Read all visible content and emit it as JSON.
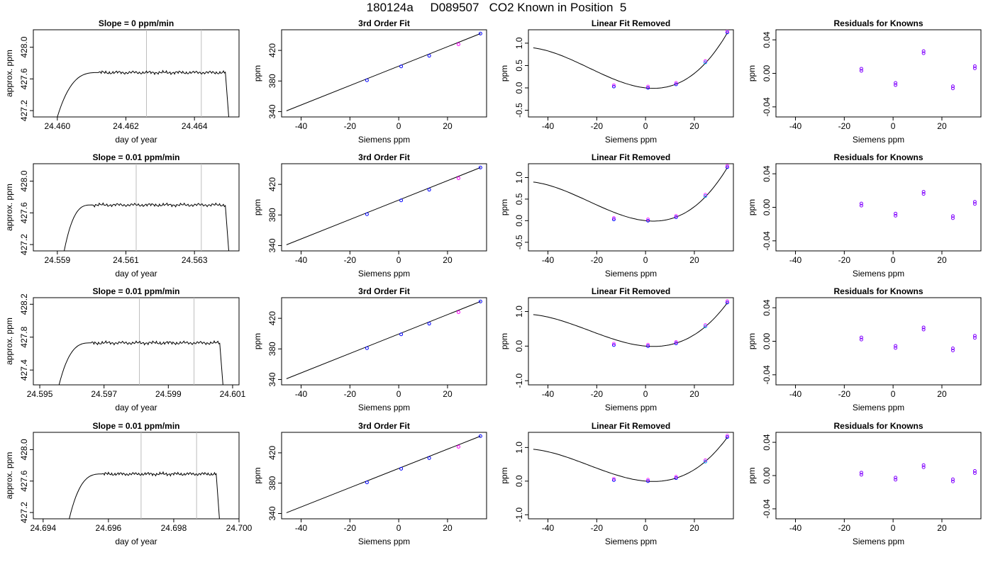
{
  "main_title": "180124a     D089507   CO2 Known in Position  5",
  "chart_data": [
    {
      "row": 0,
      "type": "line",
      "title": "Slope =  0  ppm/min",
      "xlabel": "day of year",
      "ylabel": "approx. ppm",
      "xlim": [
        24.4593,
        24.4653
      ],
      "ylim": [
        427.12,
        428.22
      ],
      "xticks": [
        "24.460",
        "24.462",
        "24.464"
      ],
      "xtick_values": [
        24.46,
        24.462,
        24.464
      ],
      "yticks": [
        "427.2",
        "427.6",
        "428.0"
      ],
      "ytick_values": [
        427.2,
        427.6,
        428.0
      ],
      "vlines": [
        24.4626,
        24.4642
      ],
      "trace": {
        "x_start": 24.46,
        "x_rise_end": 24.4612,
        "x_plateau_end": 24.4649,
        "x_end": 24.465,
        "y_start": 427.12,
        "plateau": 427.68,
        "y_end": 427.12
      }
    },
    {
      "row": 0,
      "type": "scatter",
      "title": "3rd Order Fit",
      "xlabel": "Siemens ppm",
      "ylabel": "ppm",
      "xlim": [
        -48,
        36
      ],
      "ylim": [
        333,
        447
      ],
      "xticks": [
        "-40",
        "-20",
        "0",
        "20"
      ],
      "xtick_values": [
        -40,
        -20,
        0,
        20
      ],
      "yticks": [
        "340",
        "380",
        "420"
      ],
      "ytick_values": [
        340,
        380,
        420
      ],
      "line": {
        "x": [
          -46,
          33.5
        ],
        "y": [
          341,
          442
        ]
      },
      "points": [
        {
          "x": -13,
          "y": 381
        },
        {
          "x": 1,
          "y": 399
        },
        {
          "x": 12.5,
          "y": 413
        },
        {
          "x": 24.5,
          "y": 428
        },
        {
          "x": 33.5,
          "y": 442
        }
      ]
    },
    {
      "row": 0,
      "type": "line",
      "title": "Linear Fit Removed",
      "xlabel": "Siemens ppm",
      "ylabel": "ppm",
      "xlim": [
        -48,
        36
      ],
      "ylim": [
        -0.65,
        1.3
      ],
      "xticks": [
        "-40",
        "-20",
        "0",
        "20"
      ],
      "xtick_values": [
        -40,
        -20,
        0,
        20
      ],
      "yticks": [
        "-0.5",
        "0.0",
        "0.5",
        "1.0"
      ],
      "ytick_values": [
        -0.5,
        0.0,
        0.5,
        1.0
      ],
      "curve_scale": 1.23,
      "points": [
        {
          "x": -13,
          "y": 0.03
        },
        {
          "x": 1,
          "y": 0.0
        },
        {
          "x": 12.5,
          "y": 0.08
        },
        {
          "x": 24.5,
          "y": 0.57
        },
        {
          "x": 33.5,
          "y": 1.24
        }
      ]
    },
    {
      "row": 0,
      "type": "scatter",
      "title": "Residuals for Knowns",
      "xlabel": "Siemens ppm",
      "ylabel": "ppm",
      "xlim": [
        -48,
        36
      ],
      "ylim": [
        -0.052,
        0.052
      ],
      "xticks": [
        "-40",
        "-20",
        "0",
        "20"
      ],
      "xtick_values": [
        -40,
        -20,
        0,
        20
      ],
      "yticks": [
        "-0.04",
        "0.00",
        "0.04"
      ],
      "ytick_values": [
        -0.04,
        0.0,
        0.04
      ],
      "points": [
        {
          "x": -13,
          "y": 0.003
        },
        {
          "x": 1,
          "y": -0.014
        },
        {
          "x": 12.5,
          "y": 0.024
        },
        {
          "x": 24.5,
          "y": -0.018
        },
        {
          "x": 33.5,
          "y": 0.006
        }
      ]
    },
    {
      "row": 1,
      "type": "line",
      "title": "Slope =  0.01  ppm/min",
      "xlabel": "day of year",
      "ylabel": "approx. ppm",
      "xlim": [
        24.5583,
        24.5643
      ],
      "ylim": [
        427.12,
        428.22
      ],
      "xticks": [
        "24.559",
        "24.561",
        "24.563"
      ],
      "xtick_values": [
        24.559,
        24.561,
        24.563
      ],
      "yticks": [
        "427.2",
        "427.6",
        "428.0"
      ],
      "ytick_values": [
        427.2,
        427.6,
        428.0
      ],
      "vlines": [
        24.5613,
        24.5632
      ],
      "trace": {
        "x_start": 24.5592,
        "x_rise_end": 24.56,
        "x_plateau_end": 24.5639,
        "x_end": 24.564,
        "y_start": 427.12,
        "plateau": 427.7,
        "y_end": 427.12
      }
    },
    {
      "row": 1,
      "type": "scatter",
      "title": "3rd Order Fit",
      "xlabel": "Siemens ppm",
      "ylabel": "ppm",
      "xlim": [
        -48,
        36
      ],
      "ylim": [
        333,
        447
      ],
      "xticks": [
        "-40",
        "-20",
        "0",
        "20"
      ],
      "xtick_values": [
        -40,
        -20,
        0,
        20
      ],
      "yticks": [
        "340",
        "380",
        "420"
      ],
      "ytick_values": [
        340,
        380,
        420
      ],
      "line": {
        "x": [
          -46,
          33.5
        ],
        "y": [
          341,
          442
        ]
      },
      "points": [
        {
          "x": -13,
          "y": 381
        },
        {
          "x": 1,
          "y": 399
        },
        {
          "x": 12.5,
          "y": 413
        },
        {
          "x": 24.5,
          "y": 428
        },
        {
          "x": 33.5,
          "y": 442
        }
      ]
    },
    {
      "row": 1,
      "type": "line",
      "title": "Linear Fit Removed",
      "xlabel": "Siemens ppm",
      "ylabel": "ppm",
      "xlim": [
        -48,
        36
      ],
      "ylim": [
        -0.7,
        1.32
      ],
      "xticks": [
        "-40",
        "-20",
        "0",
        "20"
      ],
      "xtick_values": [
        -40,
        -20,
        0,
        20
      ],
      "yticks": [
        "-0.5",
        "0.0",
        "0.5",
        "1.0"
      ],
      "ytick_values": [
        -0.5,
        0.0,
        0.5,
        1.0
      ],
      "curve_scale": 1.23,
      "points": [
        {
          "x": -13,
          "y": 0.03
        },
        {
          "x": 1,
          "y": 0.0
        },
        {
          "x": 12.5,
          "y": 0.08
        },
        {
          "x": 24.5,
          "y": 0.57
        },
        {
          "x": 33.5,
          "y": 1.24
        }
      ]
    },
    {
      "row": 1,
      "type": "scatter",
      "title": "Residuals for Knowns",
      "xlabel": "Siemens ppm",
      "ylabel": "ppm",
      "xlim": [
        -48,
        36
      ],
      "ylim": [
        -0.052,
        0.052
      ],
      "xticks": [
        "-40",
        "-20",
        "0",
        "20"
      ],
      "xtick_values": [
        -40,
        -20,
        0,
        20
      ],
      "yticks": [
        "-0.04",
        "0.00",
        "0.04"
      ],
      "ytick_values": [
        -0.04,
        0.0,
        0.04
      ],
      "points": [
        {
          "x": -13,
          "y": 0.002
        },
        {
          "x": 1,
          "y": -0.01
        },
        {
          "x": 12.5,
          "y": 0.016
        },
        {
          "x": 24.5,
          "y": -0.013
        },
        {
          "x": 33.5,
          "y": 0.004
        }
      ]
    },
    {
      "row": 2,
      "type": "line",
      "title": "Slope =  0.01  ppm/min",
      "xlabel": "day of year",
      "ylabel": "approx. ppm",
      "xlim": [
        24.5948,
        24.6012
      ],
      "ylim": [
        427.22,
        428.28
      ],
      "xticks": [
        "24.595",
        "24.597",
        "24.599",
        "24.601"
      ],
      "xtick_values": [
        24.595,
        24.597,
        24.599,
        24.601
      ],
      "yticks": [
        "427.4",
        "427.8",
        "428.2"
      ],
      "ytick_values": [
        427.4,
        427.8,
        428.2
      ],
      "vlines": [
        24.5981,
        24.5998
      ],
      "trace": {
        "x_start": 24.5956,
        "x_rise_end": 24.5966,
        "x_plateau_end": 24.6006,
        "x_end": 24.6007,
        "y_start": 427.22,
        "plateau": 427.73,
        "y_end": 427.22
      }
    },
    {
      "row": 2,
      "type": "scatter",
      "title": "3rd Order Fit",
      "xlabel": "Siemens ppm",
      "ylabel": "ppm",
      "xlim": [
        -48,
        36
      ],
      "ylim": [
        333,
        447
      ],
      "xticks": [
        "-40",
        "-20",
        "0",
        "20"
      ],
      "xtick_values": [
        -40,
        -20,
        0,
        20
      ],
      "yticks": [
        "340",
        "380",
        "420"
      ],
      "ytick_values": [
        340,
        380,
        420
      ],
      "line": {
        "x": [
          -46,
          33.5
        ],
        "y": [
          341,
          442
        ]
      },
      "points": [
        {
          "x": -13,
          "y": 381
        },
        {
          "x": 1,
          "y": 399
        },
        {
          "x": 12.5,
          "y": 413
        },
        {
          "x": 24.5,
          "y": 428
        },
        {
          "x": 33.5,
          "y": 442
        }
      ]
    },
    {
      "row": 2,
      "type": "line",
      "title": "Linear Fit Removed",
      "xlabel": "Siemens ppm",
      "ylabel": "ppm",
      "xlim": [
        -48,
        36
      ],
      "ylim": [
        -1.12,
        1.4
      ],
      "xticks": [
        "-40",
        "-20",
        "0",
        "20"
      ],
      "xtick_values": [
        -40,
        -20,
        0,
        20
      ],
      "yticks": [
        "-1.0",
        "0.0",
        "1.0"
      ],
      "ytick_values": [
        -1.0,
        0.0,
        1.0
      ],
      "curve_scale": 1.25,
      "points": [
        {
          "x": -13,
          "y": 0.03
        },
        {
          "x": 1,
          "y": 0.0
        },
        {
          "x": 12.5,
          "y": 0.08
        },
        {
          "x": 24.5,
          "y": 0.57
        },
        {
          "x": 33.5,
          "y": 1.26
        }
      ]
    },
    {
      "row": 2,
      "type": "scatter",
      "title": "Residuals for Knowns",
      "xlabel": "Siemens ppm",
      "ylabel": "ppm",
      "xlim": [
        -48,
        36
      ],
      "ylim": [
        -0.052,
        0.052
      ],
      "xticks": [
        "-40",
        "-20",
        "0",
        "20"
      ],
      "xtick_values": [
        -40,
        -20,
        0,
        20
      ],
      "yticks": [
        "-0.04",
        "0.00",
        "0.04"
      ],
      "ytick_values": [
        -0.04,
        0.0,
        0.04
      ],
      "points": [
        {
          "x": -13,
          "y": 0.002
        },
        {
          "x": 1,
          "y": -0.008
        },
        {
          "x": 12.5,
          "y": 0.014
        },
        {
          "x": 24.5,
          "y": -0.011
        },
        {
          "x": 33.5,
          "y": 0.004
        }
      ]
    },
    {
      "row": 3,
      "type": "line",
      "title": "Slope =  0.01  ppm/min",
      "xlabel": "day of year",
      "ylabel": "approx. ppm",
      "xlim": [
        24.6937,
        24.7
      ],
      "ylim": [
        427.12,
        428.22
      ],
      "xticks": [
        "24.694",
        "24.696",
        "24.698",
        "24.700"
      ],
      "xtick_values": [
        24.694,
        24.696,
        24.698,
        24.7
      ],
      "yticks": [
        "427.2",
        "427.6",
        "428.0"
      ],
      "ytick_values": [
        427.2,
        427.6,
        428.0
      ],
      "vlines": [
        24.697,
        24.6987
      ],
      "trace": {
        "x_start": 24.6948,
        "x_rise_end": 24.6958,
        "x_plateau_end": 24.6993,
        "x_end": 24.6994,
        "y_start": 427.12,
        "plateau": 427.69,
        "y_end": 427.12
      }
    },
    {
      "row": 3,
      "type": "scatter",
      "title": "3rd Order Fit",
      "xlabel": "Siemens ppm",
      "ylabel": "ppm",
      "xlim": [
        -48,
        36
      ],
      "ylim": [
        333,
        447
      ],
      "xticks": [
        "-40",
        "-20",
        "0",
        "20"
      ],
      "xtick_values": [
        -40,
        -20,
        0,
        20
      ],
      "yticks": [
        "340",
        "380",
        "420"
      ],
      "ytick_values": [
        340,
        380,
        420
      ],
      "line": {
        "x": [
          -46,
          33.5
        ],
        "y": [
          341,
          442
        ]
      },
      "points": [
        {
          "x": -13,
          "y": 381
        },
        {
          "x": 1,
          "y": 399
        },
        {
          "x": 12.5,
          "y": 413
        },
        {
          "x": 24.5,
          "y": 428
        },
        {
          "x": 33.5,
          "y": 442
        }
      ]
    },
    {
      "row": 3,
      "type": "line",
      "title": "Linear Fit Removed",
      "xlabel": "Siemens ppm",
      "ylabel": "ppm",
      "xlim": [
        -48,
        36
      ],
      "ylim": [
        -1.12,
        1.45
      ],
      "xticks": [
        "-40",
        "-20",
        "0",
        "20"
      ],
      "xtick_values": [
        -40,
        -20,
        0,
        20
      ],
      "yticks": [
        "-1.0",
        "0.0",
        "1.0"
      ],
      "ytick_values": [
        -1.0,
        0.0,
        1.0
      ],
      "curve_scale": 1.3,
      "points": [
        {
          "x": -13,
          "y": 0.03
        },
        {
          "x": 1,
          "y": 0.0
        },
        {
          "x": 12.5,
          "y": 0.09
        },
        {
          "x": 24.5,
          "y": 0.58
        },
        {
          "x": 33.5,
          "y": 1.31
        }
      ]
    },
    {
      "row": 3,
      "type": "scatter",
      "title": "Residuals for Knowns",
      "xlabel": "Siemens ppm",
      "ylabel": "ppm",
      "xlim": [
        -48,
        36
      ],
      "ylim": [
        -0.052,
        0.052
      ],
      "xticks": [
        "-40",
        "-20",
        "0",
        "20"
      ],
      "xtick_values": [
        -40,
        -20,
        0,
        20
      ],
      "yticks": [
        "-0.04",
        "0.00",
        "0.04"
      ],
      "ytick_values": [
        -0.04,
        0.0,
        0.04
      ],
      "points": [
        {
          "x": -13,
          "y": 0.001
        },
        {
          "x": 1,
          "y": -0.005
        },
        {
          "x": 12.5,
          "y": 0.01
        },
        {
          "x": 24.5,
          "y": -0.007
        },
        {
          "x": 33.5,
          "y": 0.003
        }
      ]
    }
  ],
  "colors": {
    "point_primary": "#0000ff",
    "point_secondary": "#ff00ff",
    "point_highlight": "#00a0ff",
    "residual_point": "#8000ff",
    "vline": "#bebebe",
    "axis": "#000000"
  }
}
